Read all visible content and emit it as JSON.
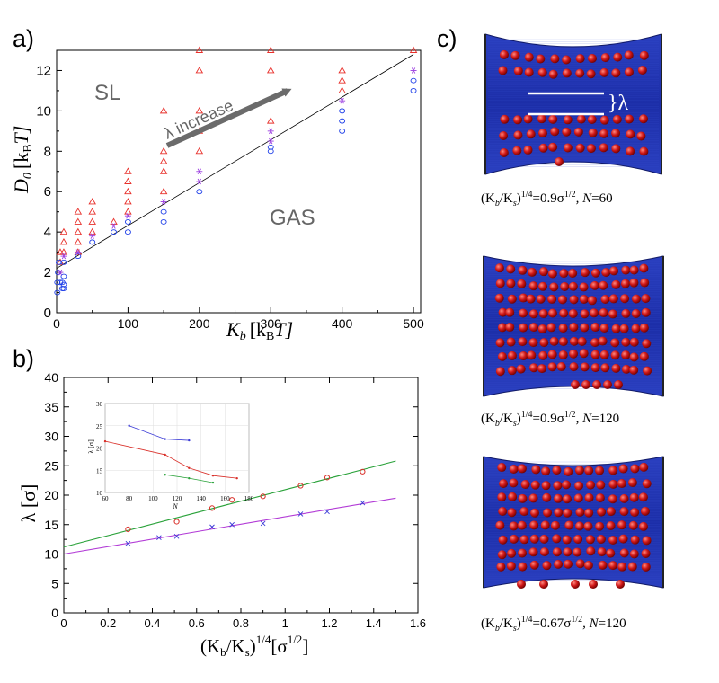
{
  "panels": {
    "a": "a)",
    "b": "b)",
    "c": "c)"
  },
  "chart_data": [
    {
      "panel": "a",
      "type": "scatter",
      "xlabel_main": "K",
      "xlabel_sub": "b",
      "xlabel_unit": "[k",
      "xlabel_unit_sub": "B",
      "xlabel_unit_T": "T]",
      "ylabel_main": "D",
      "ylabel_sub": "0",
      "ylabel_unit": "[k",
      "ylabel_unit_sub": "B",
      "ylabel_unit_T": "T]",
      "xlim": [
        0,
        510
      ],
      "ylim": [
        0,
        13
      ],
      "xticks": [
        "0",
        "100",
        "200",
        "300",
        "400",
        "500"
      ],
      "yticks": [
        "0",
        "2",
        "4",
        "6",
        "8",
        "10",
        "12"
      ],
      "annotations": {
        "sl": "SL",
        "gas": "GAS",
        "arrow_label": "λ increase"
      },
      "boundary_line": {
        "x": [
          0,
          500
        ],
        "y": [
          2.2,
          12.8
        ]
      },
      "colors": {
        "sl": "#e8302b",
        "gas": "#2040e8",
        "border": "#9b3ee0",
        "line": "#000000",
        "arrow": "#6b6b6b",
        "annotation": "#666666"
      },
      "series": [
        {
          "marker": "triangle",
          "points": [
            [
              5,
              2.5
            ],
            [
              5,
              3
            ],
            [
              10,
              3
            ],
            [
              10,
              3.5
            ],
            [
              10,
              4
            ],
            [
              30,
              3
            ],
            [
              30,
              3.5
            ],
            [
              30,
              4
            ],
            [
              30,
              4.5
            ],
            [
              30,
              5
            ],
            [
              50,
              4
            ],
            [
              50,
              4.5
            ],
            [
              50,
              5
            ],
            [
              50,
              5.5
            ],
            [
              80,
              4.5
            ],
            [
              100,
              5
            ],
            [
              100,
              5.5
            ],
            [
              100,
              6
            ],
            [
              100,
              6.5
            ],
            [
              100,
              7
            ],
            [
              150,
              6
            ],
            [
              150,
              7
            ],
            [
              150,
              7.5
            ],
            [
              150,
              8
            ],
            [
              150,
              10
            ],
            [
              200,
              8
            ],
            [
              200,
              9
            ],
            [
              200,
              10
            ],
            [
              200,
              12
            ],
            [
              200,
              13
            ],
            [
              300,
              9.5
            ],
            [
              300,
              12
            ],
            [
              300,
              13
            ],
            [
              400,
              11
            ],
            [
              400,
              11.5
            ],
            [
              400,
              12
            ],
            [
              500,
              13
            ]
          ]
        },
        {
          "marker": "circle",
          "points": [
            [
              1,
              1
            ],
            [
              1,
              1.5
            ],
            [
              2,
              2
            ],
            [
              3,
              2.5
            ],
            [
              5,
              1.5
            ],
            [
              8,
              1.2
            ],
            [
              8,
              1.5
            ],
            [
              10,
              1.2
            ],
            [
              10,
              1.4
            ],
            [
              10,
              1.8
            ],
            [
              10,
              2.5
            ],
            [
              30,
              2.8
            ],
            [
              50,
              3.5
            ],
            [
              80,
              4
            ],
            [
              100,
              4
            ],
            [
              100,
              4.5
            ],
            [
              150,
              4.5
            ],
            [
              150,
              5
            ],
            [
              200,
              6
            ],
            [
              300,
              8
            ],
            [
              300,
              8.2
            ],
            [
              400,
              9
            ],
            [
              400,
              9.5
            ],
            [
              400,
              10
            ],
            [
              500,
              11
            ],
            [
              500,
              11.5
            ]
          ]
        },
        {
          "marker": "star",
          "points": [
            [
              5,
              2
            ],
            [
              10,
              2.8
            ],
            [
              30,
              3
            ],
            [
              50,
              3.8
            ],
            [
              80,
              4.3
            ],
            [
              100,
              4.8
            ],
            [
              150,
              5.5
            ],
            [
              200,
              6.5
            ],
            [
              200,
              7
            ],
            [
              300,
              8.5
            ],
            [
              300,
              9
            ],
            [
              400,
              10.5
            ],
            [
              500,
              12
            ]
          ]
        }
      ]
    },
    {
      "panel": "b",
      "type": "line",
      "xlabel": "(K",
      "xlabel_sub1": "b",
      "xlabel_mid": "/K",
      "xlabel_sub2": "s",
      "xlabel_close": ")",
      "xlabel_sup": "1/4",
      "xlabel_tail": "[σ",
      "xlabel_tail_sup": "1/2",
      "xlabel_end": "]",
      "ylabel": "λ [σ]",
      "xlim": [
        0,
        1.6
      ],
      "ylim": [
        0,
        40
      ],
      "xticks": [
        "0",
        "0.2",
        "0.4",
        "0.6",
        "0.8",
        "1",
        "1.2",
        "1.4",
        "1.6"
      ],
      "yticks": [
        "0",
        "5",
        "10",
        "15",
        "20",
        "25",
        "30",
        "35",
        "40"
      ],
      "colors": {
        "red": "#d9302a",
        "green": "#2aa23a",
        "blue": "#3b3bd6",
        "purple": "#b23bd6"
      },
      "series": [
        {
          "marker": "circle",
          "color": "red",
          "x": [
            0.29,
            0.51,
            0.67,
            0.76,
            0.9,
            1.07,
            1.19,
            1.35
          ],
          "y": [
            14.2,
            15.5,
            17.8,
            19.2,
            19.8,
            21.6,
            23.0,
            24.0
          ]
        },
        {
          "marker": "x",
          "color": "blue",
          "x": [
            0.29,
            0.43,
            0.51,
            0.67,
            0.76,
            0.9,
            1.07,
            1.19,
            1.35
          ],
          "y": [
            11.8,
            12.8,
            13.0,
            14.6,
            15.0,
            15.2,
            16.8,
            17.2,
            18.7
          ]
        }
      ],
      "fits": [
        {
          "color": "green",
          "x": [
            0,
            1.5
          ],
          "y": [
            11.2,
            25.8
          ]
        },
        {
          "color": "purple",
          "x": [
            0,
            1.5
          ],
          "y": [
            10.0,
            19.5
          ]
        }
      ],
      "inset": {
        "xlabel": "N",
        "ylabel": "λ [σ]",
        "xlim": [
          60,
          180
        ],
        "ylim": [
          10,
          30
        ],
        "xticks": [
          "60",
          "80",
          "100",
          "120",
          "140",
          "160",
          "180"
        ],
        "yticks": [
          "10",
          "15",
          "20",
          "25",
          "30"
        ],
        "series": [
          {
            "color": "blue",
            "x": [
              80,
              110,
              130
            ],
            "y": [
              25,
              22,
              21.7
            ]
          },
          {
            "color": "red",
            "x": [
              60,
              110,
              130,
              150,
              170
            ],
            "y": [
              21.5,
              18.5,
              15.5,
              13.8,
              13.2
            ]
          },
          {
            "color": "green",
            "x": [
              110,
              130,
              150
            ],
            "y": [
              14,
              13.2,
              12.2
            ]
          }
        ]
      }
    }
  ],
  "images": {
    "lambda_label": "}λ",
    "captions": [
      {
        "k": "(K",
        "b": "b",
        "sl": "/K",
        "s": "s",
        "rp": ")",
        "p": "1/4",
        "eq": "=0.9σ",
        "h": "1/2",
        "n": ", N",
        "val": "=60"
      },
      {
        "k": "(K",
        "b": "b",
        "sl": "/K",
        "s": "s",
        "rp": ")",
        "p": "1/4",
        "eq": "=0.9σ",
        "h": "1/2",
        "n": ", N",
        "val": "=120"
      },
      {
        "k": "(K",
        "b": "b",
        "sl": "/K",
        "s": "s",
        "rp": ")",
        "p": "1/4",
        "eq": "=0.67σ",
        "h": "1/2",
        "n": ", N",
        "val": "=120"
      }
    ]
  }
}
